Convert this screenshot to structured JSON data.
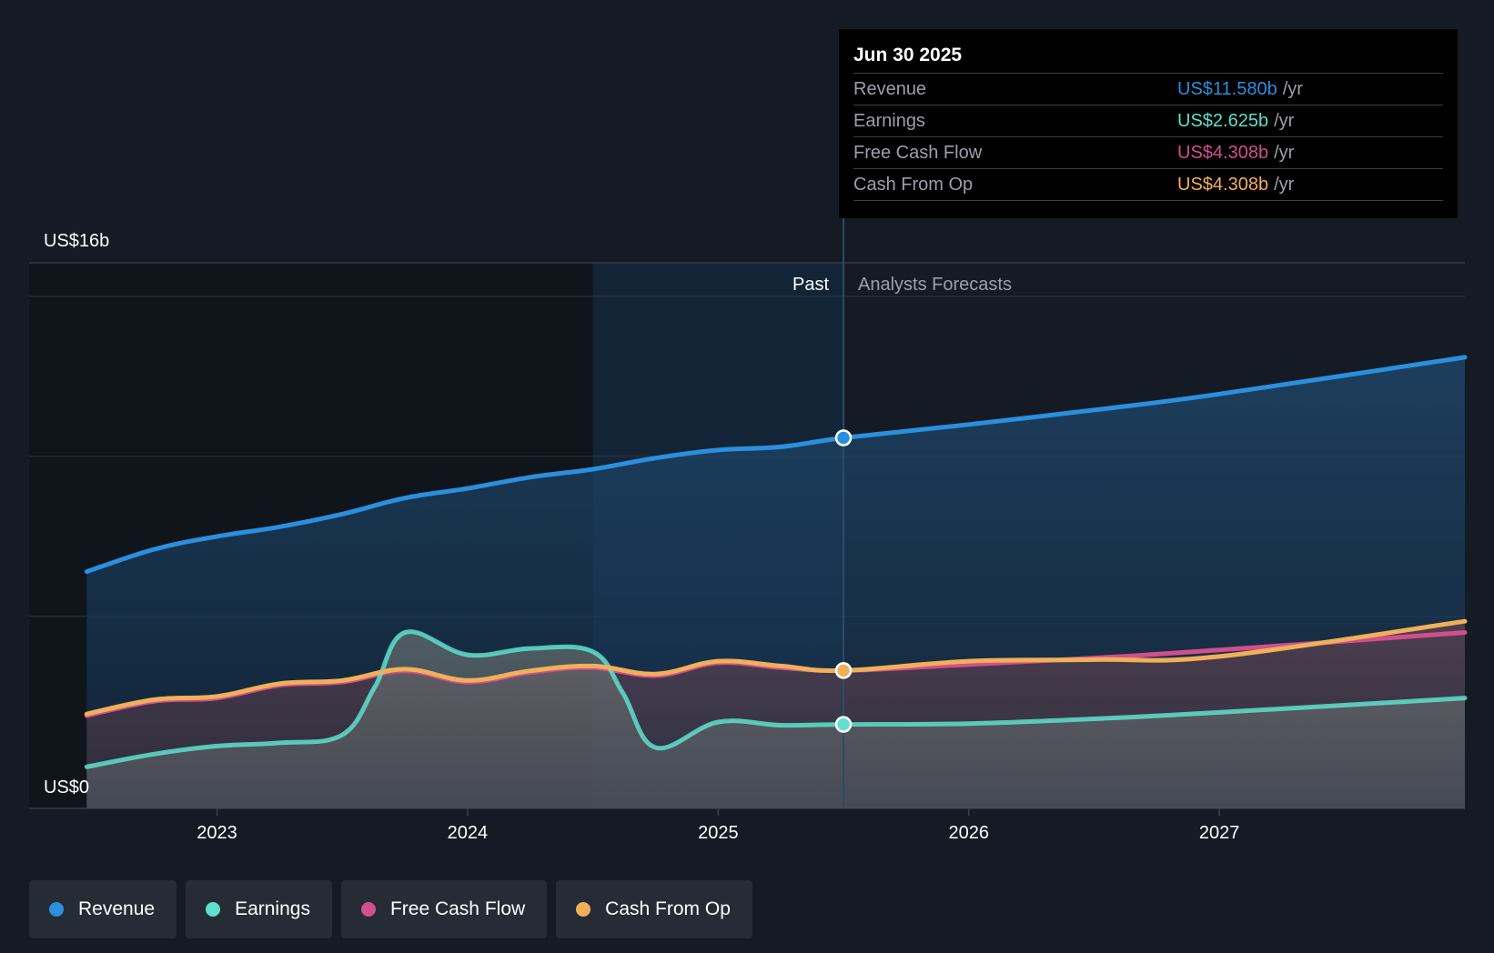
{
  "colors": {
    "revenue": "#2a8fde",
    "earnings": "#5fe0cc",
    "fcf": "#d14f8c",
    "cfo": "#f0b05a"
  },
  "tooltip": {
    "date": "Jun 30 2025",
    "rows": [
      {
        "label": "Revenue",
        "value": "US$11.580b",
        "unit": "/yr",
        "color": "#2a8fde"
      },
      {
        "label": "Earnings",
        "value": "US$2.625b",
        "unit": "/yr",
        "color": "#5fe0cc"
      },
      {
        "label": "Free Cash Flow",
        "value": "US$4.308b",
        "unit": "/yr",
        "color": "#d14f8c"
      },
      {
        "label": "Cash From Op",
        "value": "US$4.308b",
        "unit": "/yr",
        "color": "#f0b05a"
      }
    ]
  },
  "legend": [
    {
      "label": "Revenue",
      "color": "#2a8fde"
    },
    {
      "label": "Earnings",
      "color": "#5fe0cc"
    },
    {
      "label": "Free Cash Flow",
      "color": "#d14f8c"
    },
    {
      "label": "Cash From Op",
      "color": "#f0b05a"
    }
  ],
  "chart_data": {
    "type": "area",
    "y_unit_labels": {
      "top": "US$16b",
      "bottom": "US$0"
    },
    "ylim": [
      0,
      16
    ],
    "xlim": [
      2022.25,
      2027.98
    ],
    "x_ticks": [
      2023,
      2024,
      2025,
      2026,
      2027
    ],
    "x_tick_labels": [
      "2023",
      "2024",
      "2025",
      "2026",
      "2027"
    ],
    "past_label": "Past",
    "forecast_label": "Analysts Forecasts",
    "divider_x": 2025.5,
    "highlight_start_x": 2024.5,
    "series": [
      {
        "name": "Revenue",
        "points": [
          [
            2022.48,
            7.4
          ],
          [
            2022.75,
            8.1
          ],
          [
            2023.0,
            8.5
          ],
          [
            2023.25,
            8.8
          ],
          [
            2023.5,
            9.2
          ],
          [
            2023.75,
            9.7
          ],
          [
            2024.0,
            10.0
          ],
          [
            2024.25,
            10.35
          ],
          [
            2024.5,
            10.6
          ],
          [
            2024.75,
            10.95
          ],
          [
            2025.0,
            11.2
          ],
          [
            2025.25,
            11.3
          ],
          [
            2025.5,
            11.58
          ],
          [
            2026.0,
            12.0
          ],
          [
            2026.5,
            12.45
          ],
          [
            2027.0,
            12.95
          ],
          [
            2027.98,
            14.1
          ]
        ]
      },
      {
        "name": "Earnings",
        "points": [
          [
            2022.48,
            1.3
          ],
          [
            2022.75,
            1.7
          ],
          [
            2023.0,
            1.95
          ],
          [
            2023.25,
            2.05
          ],
          [
            2023.5,
            2.3
          ],
          [
            2023.63,
            3.8
          ],
          [
            2023.75,
            5.5
          ],
          [
            2024.0,
            4.8
          ],
          [
            2024.25,
            5.0
          ],
          [
            2024.5,
            4.9
          ],
          [
            2024.62,
            3.6
          ],
          [
            2024.75,
            1.9
          ],
          [
            2025.0,
            2.7
          ],
          [
            2025.25,
            2.6
          ],
          [
            2025.5,
            2.625
          ],
          [
            2026.0,
            2.65
          ],
          [
            2026.5,
            2.8
          ],
          [
            2027.0,
            3.0
          ],
          [
            2027.98,
            3.45
          ]
        ]
      },
      {
        "name": "Free Cash Flow",
        "points": [
          [
            2022.48,
            2.9
          ],
          [
            2022.75,
            3.35
          ],
          [
            2023.0,
            3.45
          ],
          [
            2023.25,
            3.85
          ],
          [
            2023.5,
            3.95
          ],
          [
            2023.75,
            4.3
          ],
          [
            2024.0,
            3.95
          ],
          [
            2024.25,
            4.25
          ],
          [
            2024.5,
            4.4
          ],
          [
            2024.75,
            4.15
          ],
          [
            2025.0,
            4.55
          ],
          [
            2025.25,
            4.4
          ],
          [
            2025.5,
            4.308
          ],
          [
            2026.0,
            4.5
          ],
          [
            2026.5,
            4.7
          ],
          [
            2027.0,
            4.95
          ],
          [
            2027.98,
            5.5
          ]
        ]
      },
      {
        "name": "Cash From Op",
        "points": [
          [
            2022.48,
            2.95
          ],
          [
            2022.75,
            3.4
          ],
          [
            2023.0,
            3.5
          ],
          [
            2023.25,
            3.9
          ],
          [
            2023.5,
            4.0
          ],
          [
            2023.75,
            4.35
          ],
          [
            2024.0,
            4.0
          ],
          [
            2024.25,
            4.3
          ],
          [
            2024.5,
            4.45
          ],
          [
            2024.75,
            4.2
          ],
          [
            2025.0,
            4.6
          ],
          [
            2025.25,
            4.45
          ],
          [
            2025.5,
            4.308
          ],
          [
            2026.0,
            4.6
          ],
          [
            2026.5,
            4.65
          ],
          [
            2027.0,
            4.75
          ],
          [
            2027.98,
            5.85
          ]
        ]
      }
    ]
  }
}
